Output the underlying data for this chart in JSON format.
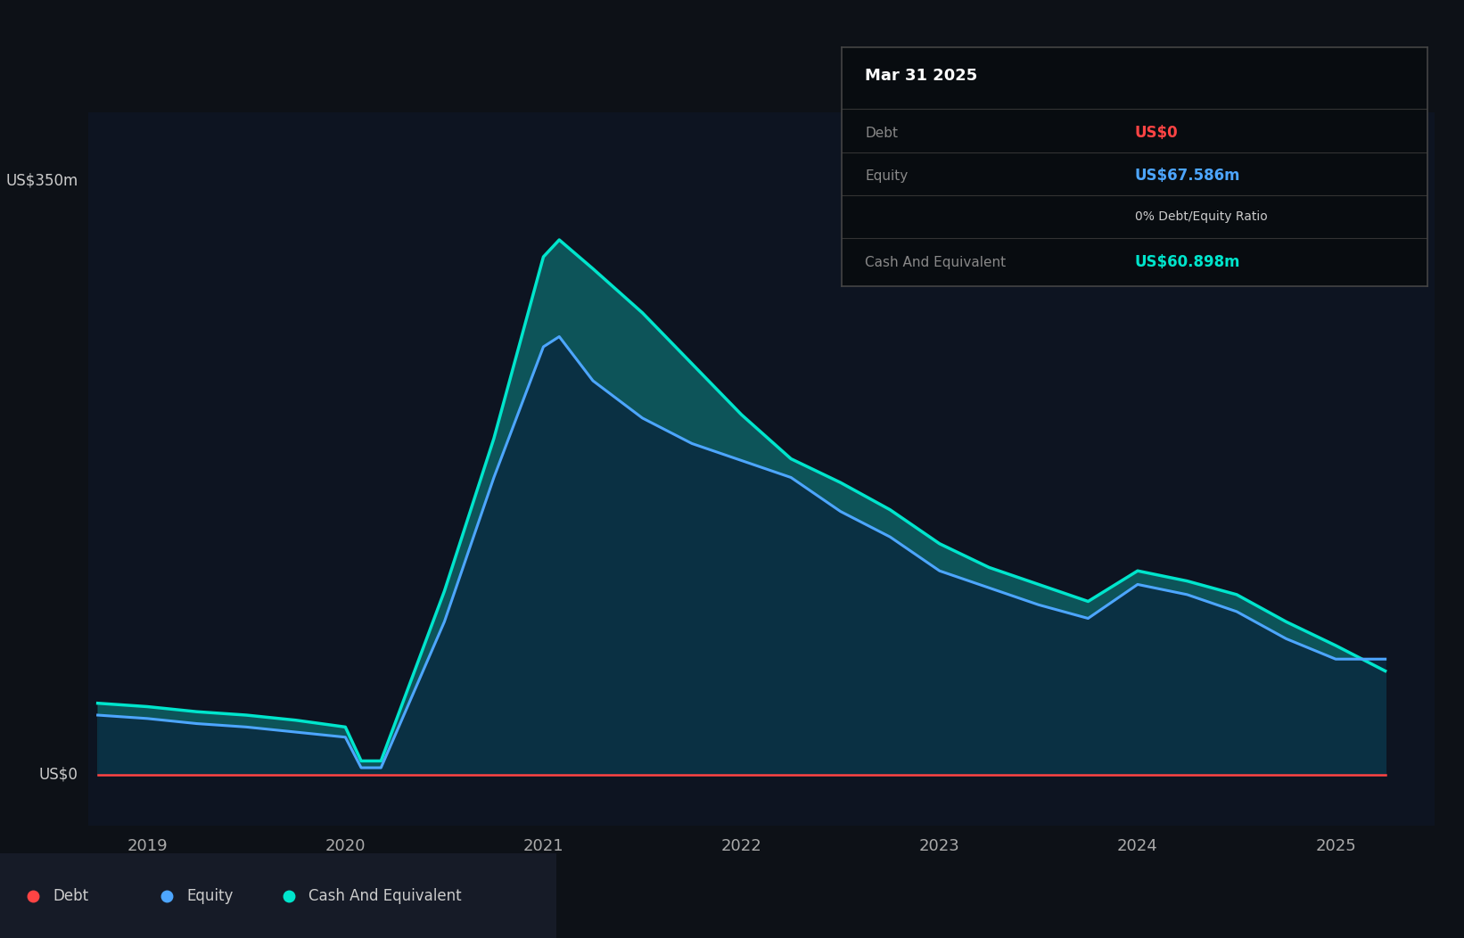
{
  "background_color": "#0d1117",
  "chart_bg": "#0d1421",
  "ylabel": "US$350m",
  "y0label": "US$0",
  "xlim_start": 2018.7,
  "xlim_end": 2025.5,
  "ylim_min": -30,
  "ylim_max": 390,
  "grid_color": "#2a3040",
  "debt_color": "#ff4444",
  "equity_color": "#4da6ff",
  "cash_color": "#00e5cc",
  "cash_fill_color": "#0d5c60",
  "equity_fill_color": "#0a2a40",
  "tooltip_bg": "#0a0a0a",
  "tooltip_title": "Mar 31 2025",
  "tooltip_debt_label": "Debt",
  "tooltip_debt_value": "US$0",
  "tooltip_equity_label": "Equity",
  "tooltip_equity_value": "US$67.586m",
  "tooltip_ratio": "0% Debt/Equity Ratio",
  "tooltip_cash_label": "Cash And Equivalent",
  "tooltip_cash_value": "US$60.898m",
  "legend_items": [
    "Debt",
    "Equity",
    "Cash And Equivalent"
  ],
  "legend_colors": [
    "#ff4444",
    "#4da6ff",
    "#00e5cc"
  ],
  "x_ticks": [
    2019,
    2020,
    2021,
    2022,
    2023,
    2024,
    2025
  ],
  "time_points": [
    2018.75,
    2019.0,
    2019.25,
    2019.5,
    2019.75,
    2020.0,
    2020.08,
    2020.18,
    2020.5,
    2020.75,
    2021.0,
    2021.08,
    2021.25,
    2021.5,
    2021.75,
    2022.0,
    2022.25,
    2022.5,
    2022.75,
    2023.0,
    2023.25,
    2023.5,
    2023.75,
    2024.0,
    2024.25,
    2024.5,
    2024.75,
    2025.0,
    2025.25
  ],
  "equity_values": [
    35,
    33,
    30,
    28,
    25,
    22,
    4,
    4,
    90,
    175,
    252,
    258,
    232,
    210,
    195,
    185,
    175,
    155,
    140,
    120,
    110,
    100,
    92,
    112,
    106,
    96,
    80,
    68,
    68
  ],
  "cash_values": [
    42,
    40,
    37,
    35,
    32,
    28,
    8,
    8,
    108,
    198,
    305,
    315,
    298,
    272,
    242,
    212,
    186,
    172,
    156,
    136,
    122,
    112,
    102,
    120,
    114,
    106,
    90,
    76,
    61
  ],
  "debt_values": [
    0,
    0,
    0,
    0,
    0,
    0,
    0,
    0,
    0,
    0,
    0,
    0,
    0,
    0,
    0,
    0,
    0,
    0,
    0,
    0,
    0,
    0,
    0,
    0,
    0,
    0,
    0,
    0,
    0
  ]
}
